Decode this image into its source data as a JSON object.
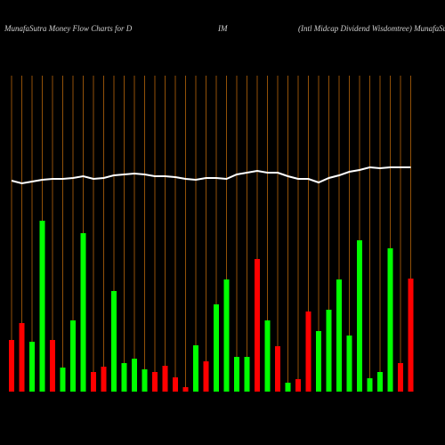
{
  "chart_data": {
    "type": "bar",
    "title": [
      "MunafaSutra  Money Flow  Charts for D",
      "IM",
      "(Intl Midcap Dividend Wisdomtree) MunafaSutra.com"
    ],
    "categories": [
      null,
      null,
      null,
      null,
      null,
      null,
      null,
      null,
      null,
      null,
      null,
      null,
      null,
      null,
      null,
      null,
      null,
      null,
      null,
      null,
      null,
      null,
      null,
      null,
      null,
      null,
      null,
      null,
      null,
      null,
      null,
      null,
      null,
      null,
      null,
      null,
      null,
      null,
      null,
      null
    ],
    "values": [
      58,
      77,
      56,
      192,
      58,
      27,
      80,
      178,
      22,
      28,
      113,
      32,
      37,
      25,
      22,
      29,
      16,
      5,
      52,
      34,
      98,
      126,
      39,
      39,
      149,
      80,
      51,
      10,
      14,
      90,
      68,
      92,
      126,
      63,
      170,
      15,
      22,
      161,
      32,
      127
    ],
    "colors": [
      "#ff0000",
      "#ff0000",
      "#00ff00",
      "#00ff00",
      "#ff0000",
      "#00ff00",
      "#00ff00",
      "#00ff00",
      "#ff0000",
      "#ff0000",
      "#00ff00",
      "#00ff00",
      "#00ff00",
      "#00ff00",
      "#ff0000",
      "#ff0000",
      "#ff0000",
      "#ff0000",
      "#00ff00",
      "#ff0000",
      "#00ff00",
      "#00ff00",
      "#00ff00",
      "#00ff00",
      "#ff0000",
      "#00ff00",
      "#ff0000",
      "#00ff00",
      "#ff0000",
      "#ff0000",
      "#00ff00",
      "#00ff00",
      "#00ff00",
      "#00ff00",
      "#00ff00",
      "#00ff00",
      "#00ff00",
      "#00ff00",
      "#ff0000",
      "#ff0000"
    ],
    "line": {
      "color": "#ffffff",
      "values": [
        237,
        234,
        236,
        238,
        239,
        239,
        240,
        242,
        239,
        240,
        243,
        244,
        245,
        244,
        242,
        242,
        241,
        239,
        238,
        240,
        240,
        239,
        244,
        246,
        248,
        246,
        246,
        242,
        239,
        239,
        235,
        240,
        243,
        247,
        249,
        252,
        251,
        252,
        252,
        252
      ]
    },
    "grid_color": "#b8660b",
    "ylim": [
      0,
      355
    ]
  }
}
